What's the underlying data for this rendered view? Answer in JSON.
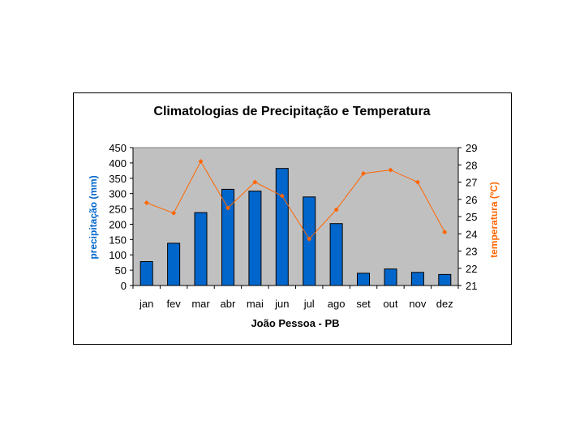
{
  "chart_data": {
    "type": "bar+line",
    "title": "Climatologias de Precipitação e Temperatura",
    "xlabel": "João Pessoa - PB",
    "categories": [
      "jan",
      "fev",
      "mar",
      "abr",
      "mai",
      "jun",
      "jul",
      "ago",
      "set",
      "out",
      "nov",
      "dez"
    ],
    "series": [
      {
        "name": "precipitação",
        "type": "bar",
        "axis": "left",
        "color": "#0066cc",
        "values": [
          78,
          138,
          238,
          314,
          308,
          382,
          289,
          202,
          40,
          54,
          43,
          36
        ]
      },
      {
        "name": "temperatura",
        "type": "line",
        "axis": "right",
        "color": "#ff6600",
        "values": [
          25.8,
          25.2,
          28.2,
          25.5,
          27.0,
          26.2,
          23.7,
          25.4,
          27.5,
          27.7,
          27.0,
          24.1
        ]
      }
    ],
    "ylabel_left": "precipitação (mm)",
    "ylabel_right": "temperatura (ºC)",
    "ylim_left": [
      0,
      450
    ],
    "ylim_right": [
      21,
      29
    ],
    "yticks_left": [
      "0",
      "50",
      "100",
      "150",
      "200",
      "250",
      "300",
      "350",
      "400",
      "450"
    ],
    "yticks_right": [
      "21",
      "22",
      "23",
      "24",
      "25",
      "26",
      "27",
      "28",
      "29"
    ],
    "plot_background": "#c0c0c0"
  }
}
